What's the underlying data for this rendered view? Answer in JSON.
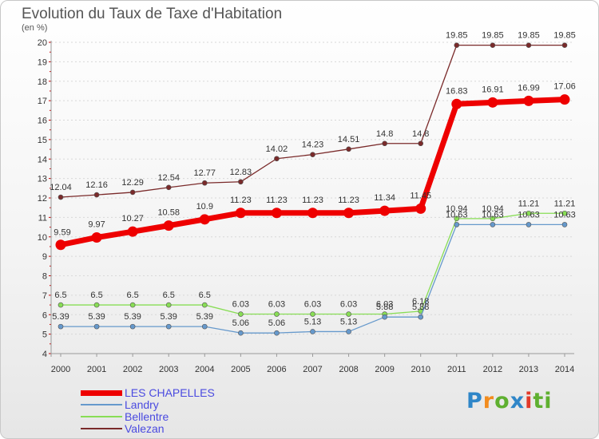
{
  "title": "Evolution du Taux de Taxe d'Habitation",
  "unit": "(en %)",
  "logo": {
    "text": "Proxiti",
    "letters": [
      "P",
      "r",
      "o",
      "x",
      "i",
      "t",
      "i"
    ]
  },
  "chart_data": {
    "type": "line",
    "title": "Evolution du Taux de Taxe d'Habitation",
    "ylabel": "(en %)",
    "xlabel": "",
    "x": [
      2000,
      2001,
      2002,
      2003,
      2004,
      2005,
      2006,
      2007,
      2008,
      2009,
      2010,
      2011,
      2012,
      2013,
      2014
    ],
    "ylim": [
      4,
      20
    ],
    "yticks": [
      4,
      5,
      6,
      7,
      8,
      9,
      10,
      11,
      12,
      13,
      14,
      15,
      16,
      17,
      18,
      19,
      20
    ],
    "grid": "horizontal dashed",
    "legend": "bottom-left",
    "series": [
      {
        "name": "Valezan",
        "color": "#7a2a2a",
        "values": [
          12.04,
          12.16,
          12.29,
          12.54,
          12.77,
          12.83,
          14.02,
          14.23,
          14.51,
          14.8,
          14.8,
          19.85,
          19.85,
          19.85,
          19.85
        ],
        "labels": [
          "12.04",
          "12.16",
          "12.29",
          "12.54",
          "12.77",
          "12.83",
          "14.02",
          "14.23",
          "14.51",
          "14.8",
          "14.8",
          "19.85",
          "19.85",
          "19.85",
          "19.85"
        ]
      },
      {
        "name": "Bellentre",
        "color": "#88dd55",
        "values": [
          6.5,
          6.5,
          6.5,
          6.5,
          6.5,
          6.03,
          6.03,
          6.03,
          6.03,
          6.03,
          6.18,
          10.94,
          10.94,
          11.21,
          11.21
        ],
        "labels": [
          "6.5",
          "6.5",
          "6.5",
          "6.5",
          "6.5",
          "6.03",
          "6.03",
          "6.03",
          "6.03",
          "6.03",
          "6.18",
          "10.94",
          "10.94",
          "11.21",
          "11.21"
        ]
      },
      {
        "name": "Landry",
        "color": "#6699cc",
        "values": [
          5.39,
          5.39,
          5.39,
          5.39,
          5.39,
          5.06,
          5.06,
          5.13,
          5.13,
          5.88,
          5.88,
          10.63,
          10.63,
          10.63,
          10.63
        ],
        "labels": [
          "5.39",
          "5.39",
          "5.39",
          "5.39",
          "5.39",
          "5.06",
          "5.06",
          "5.13",
          "5.13",
          "5.88",
          "5.88",
          "10.63",
          "10.63",
          "10.63",
          "10.63"
        ]
      },
      {
        "name": "LES CHAPELLES",
        "color": "#ee0000",
        "values": [
          9.59,
          9.97,
          10.27,
          10.58,
          10.9,
          11.23,
          11.23,
          11.23,
          11.23,
          11.34,
          11.45,
          16.83,
          16.91,
          16.99,
          17.06
        ],
        "labels": [
          "9.59",
          "9.97",
          "10.27",
          "10.58",
          "10.9",
          "11.23",
          "11.23",
          "11.23",
          "11.23",
          "11.34",
          "11.45",
          "16.83",
          "16.91",
          "16.99",
          "17.06"
        ]
      }
    ]
  }
}
